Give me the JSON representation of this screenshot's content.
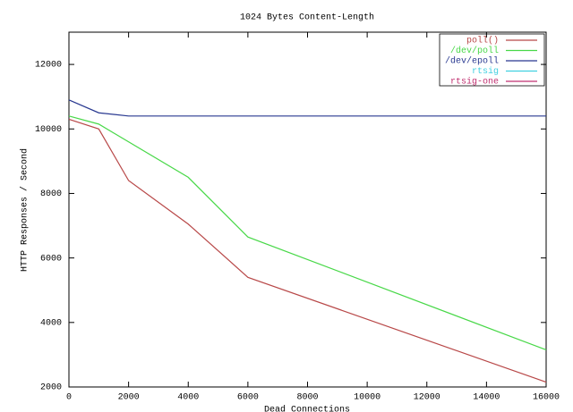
{
  "chart_data": {
    "type": "line",
    "title": "1024 Bytes Content-Length",
    "x_label": "Dead Connections",
    "y_label": "HTTP Responses / Second",
    "xlim": [
      0,
      16000
    ],
    "ylim": [
      2000,
      13000
    ],
    "xticks": [
      0,
      2000,
      4000,
      6000,
      8000,
      10000,
      12000,
      14000,
      16000
    ],
    "yticks": [
      2000,
      4000,
      6000,
      8000,
      10000,
      12000
    ],
    "legend": "top-right",
    "series": [
      {
        "name": "poll()",
        "color": "#b84848",
        "x": [
          0,
          1000,
          2000,
          4000,
          6000,
          16000
        ],
        "values": [
          10300,
          10000,
          8400,
          7050,
          5400,
          2150
        ]
      },
      {
        "name": "/dev/poll",
        "color": "#48d848",
        "x": [
          0,
          1000,
          4000,
          6000,
          16000
        ],
        "values": [
          10400,
          10150,
          8500,
          6650,
          3150
        ]
      },
      {
        "name": "/dev/epoll",
        "color": "#283890",
        "x": [
          0,
          1000,
          2000,
          16000
        ],
        "values": [
          10900,
          10500,
          10400,
          10400
        ]
      },
      {
        "name": "rtsig",
        "color": "#40d0e0",
        "x": [],
        "values": []
      },
      {
        "name": "rtsig-one",
        "color": "#c03070",
        "x": [],
        "values": []
      }
    ]
  }
}
